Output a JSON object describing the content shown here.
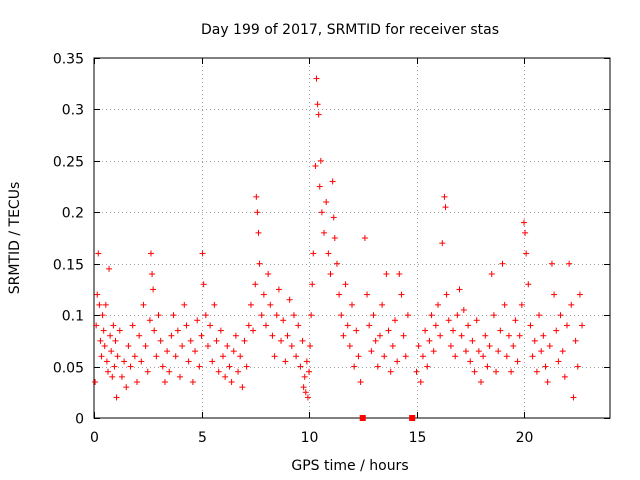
{
  "chart_data": {
    "type": "scatter",
    "title": "Day 199 of 2017, SRMTID for receiver stas",
    "xlabel": "GPS time / hours",
    "ylabel": "SRMTID / TECUs",
    "xlim": [
      0,
      24
    ],
    "ylim": [
      0,
      0.35
    ],
    "xticks": [
      0,
      5,
      10,
      15,
      20
    ],
    "xtick_labels": [
      "0",
      "5",
      "10",
      "15",
      "20"
    ],
    "yticks": [
      0,
      0.05,
      0.1,
      0.15,
      0.2,
      0.25,
      0.3,
      0.35
    ],
    "ytick_labels": [
      "0",
      "0.05",
      "0.1",
      "0.15",
      "0.2",
      "0.25",
      "0.3",
      "0.35"
    ],
    "grid": true,
    "marker": "+",
    "color": "#ff0000",
    "series": [
      {
        "name": "SRMTID",
        "points": [
          [
            0.05,
            0.035
          ],
          [
            0.1,
            0.09
          ],
          [
            0.15,
            0.12
          ],
          [
            0.2,
            0.16
          ],
          [
            0.25,
            0.11
          ],
          [
            0.3,
            0.075
          ],
          [
            0.35,
            0.06
          ],
          [
            0.4,
            0.1
          ],
          [
            0.45,
            0.085
          ],
          [
            0.5,
            0.07
          ],
          [
            0.55,
            0.11
          ],
          [
            0.6,
            0.055
          ],
          [
            0.65,
            0.045
          ],
          [
            0.7,
            0.145
          ],
          [
            0.75,
            0.08
          ],
          [
            0.8,
            0.065
          ],
          [
            0.85,
            0.04
          ],
          [
            0.9,
            0.09
          ],
          [
            0.95,
            0.05
          ],
          [
            1.0,
            0.075
          ],
          [
            1.05,
            0.02
          ],
          [
            1.1,
            0.06
          ],
          [
            1.2,
            0.085
          ],
          [
            1.3,
            0.04
          ],
          [
            1.4,
            0.055
          ],
          [
            1.5,
            0.03
          ],
          [
            1.6,
            0.07
          ],
          [
            1.7,
            0.05
          ],
          [
            1.8,
            0.09
          ],
          [
            1.9,
            0.06
          ],
          [
            2.0,
            0.035
          ],
          [
            2.1,
            0.08
          ],
          [
            2.2,
            0.055
          ],
          [
            2.3,
            0.11
          ],
          [
            2.4,
            0.07
          ],
          [
            2.5,
            0.045
          ],
          [
            2.6,
            0.095
          ],
          [
            2.65,
            0.16
          ],
          [
            2.7,
            0.14
          ],
          [
            2.75,
            0.125
          ],
          [
            2.8,
            0.085
          ],
          [
            2.9,
            0.06
          ],
          [
            3.0,
            0.1
          ],
          [
            3.1,
            0.075
          ],
          [
            3.2,
            0.05
          ],
          [
            3.3,
            0.035
          ],
          [
            3.4,
            0.065
          ],
          [
            3.5,
            0.045
          ],
          [
            3.6,
            0.08
          ],
          [
            3.7,
            0.1
          ],
          [
            3.8,
            0.06
          ],
          [
            3.9,
            0.085
          ],
          [
            4.0,
            0.04
          ],
          [
            4.1,
            0.07
          ],
          [
            4.2,
            0.11
          ],
          [
            4.3,
            0.09
          ],
          [
            4.4,
            0.055
          ],
          [
            4.5,
            0.075
          ],
          [
            4.6,
            0.035
          ],
          [
            4.7,
            0.065
          ],
          [
            4.8,
            0.095
          ],
          [
            4.9,
            0.05
          ],
          [
            5.0,
            0.08
          ],
          [
            5.05,
            0.16
          ],
          [
            5.1,
            0.13
          ],
          [
            5.2,
            0.1
          ],
          [
            5.3,
            0.07
          ],
          [
            5.4,
            0.09
          ],
          [
            5.5,
            0.055
          ],
          [
            5.6,
            0.11
          ],
          [
            5.7,
            0.075
          ],
          [
            5.8,
            0.045
          ],
          [
            5.9,
            0.085
          ],
          [
            6.0,
            0.06
          ],
          [
            6.1,
            0.04
          ],
          [
            6.2,
            0.07
          ],
          [
            6.3,
            0.05
          ],
          [
            6.4,
            0.035
          ],
          [
            6.5,
            0.065
          ],
          [
            6.6,
            0.08
          ],
          [
            6.7,
            0.045
          ],
          [
            6.8,
            0.06
          ],
          [
            6.9,
            0.03
          ],
          [
            7.0,
            0.075
          ],
          [
            7.1,
            0.05
          ],
          [
            7.2,
            0.09
          ],
          [
            7.3,
            0.11
          ],
          [
            7.4,
            0.085
          ],
          [
            7.5,
            0.13
          ],
          [
            7.55,
            0.215
          ],
          [
            7.6,
            0.2
          ],
          [
            7.65,
            0.18
          ],
          [
            7.7,
            0.15
          ],
          [
            7.8,
            0.1
          ],
          [
            7.9,
            0.12
          ],
          [
            8.0,
            0.09
          ],
          [
            8.1,
            0.14
          ],
          [
            8.2,
            0.11
          ],
          [
            8.3,
            0.08
          ],
          [
            8.4,
            0.06
          ],
          [
            8.5,
            0.1
          ],
          [
            8.6,
            0.125
          ],
          [
            8.7,
            0.075
          ],
          [
            8.8,
            0.095
          ],
          [
            8.9,
            0.055
          ],
          [
            9.0,
            0.08
          ],
          [
            9.1,
            0.115
          ],
          [
            9.2,
            0.07
          ],
          [
            9.3,
            0.1
          ],
          [
            9.4,
            0.06
          ],
          [
            9.5,
            0.09
          ],
          [
            9.6,
            0.05
          ],
          [
            9.7,
            0.075
          ],
          [
            9.75,
            0.03
          ],
          [
            9.8,
            0.04
          ],
          [
            9.85,
            0.025
          ],
          [
            9.9,
            0.055
          ],
          [
            9.95,
            0.02
          ],
          [
            10.0,
            0.045
          ],
          [
            10.05,
            0.07
          ],
          [
            10.1,
            0.1
          ],
          [
            10.15,
            0.13
          ],
          [
            10.2,
            0.16
          ],
          [
            10.3,
            0.245
          ],
          [
            10.35,
            0.33
          ],
          [
            10.4,
            0.305
          ],
          [
            10.45,
            0.295
          ],
          [
            10.5,
            0.225
          ],
          [
            10.55,
            0.25
          ],
          [
            10.6,
            0.2
          ],
          [
            10.7,
            0.18
          ],
          [
            10.8,
            0.21
          ],
          [
            10.9,
            0.16
          ],
          [
            11.0,
            0.14
          ],
          [
            11.1,
            0.23
          ],
          [
            11.15,
            0.195
          ],
          [
            11.2,
            0.175
          ],
          [
            11.3,
            0.15
          ],
          [
            11.4,
            0.12
          ],
          [
            11.5,
            0.1
          ],
          [
            11.6,
            0.08
          ],
          [
            11.7,
            0.13
          ],
          [
            11.8,
            0.09
          ],
          [
            11.9,
            0.07
          ],
          [
            12.0,
            0.11
          ],
          [
            12.1,
            0.05
          ],
          [
            12.2,
            0.085
          ],
          [
            12.3,
            0.06
          ],
          [
            12.4,
            0.035
          ],
          [
            12.6,
            0.175
          ],
          [
            12.7,
            0.12
          ],
          [
            12.8,
            0.09
          ],
          [
            12.9,
            0.065
          ],
          [
            13.0,
            0.1
          ],
          [
            13.1,
            0.075
          ],
          [
            13.2,
            0.05
          ],
          [
            13.3,
            0.08
          ],
          [
            13.4,
            0.11
          ],
          [
            13.5,
            0.06
          ],
          [
            13.6,
            0.14
          ],
          [
            13.7,
            0.085
          ],
          [
            13.8,
            0.045
          ],
          [
            13.9,
            0.07
          ],
          [
            14.0,
            0.095
          ],
          [
            14.1,
            0.055
          ],
          [
            14.2,
            0.14
          ],
          [
            14.3,
            0.12
          ],
          [
            14.4,
            0.08
          ],
          [
            14.5,
            0.06
          ],
          [
            14.6,
            0.1
          ],
          [
            15.0,
            0.045
          ],
          [
            15.1,
            0.07
          ],
          [
            15.2,
            0.035
          ],
          [
            15.3,
            0.06
          ],
          [
            15.4,
            0.085
          ],
          [
            15.5,
            0.05
          ],
          [
            15.6,
            0.075
          ],
          [
            15.7,
            0.1
          ],
          [
            15.8,
            0.065
          ],
          [
            15.9,
            0.09
          ],
          [
            16.0,
            0.11
          ],
          [
            16.1,
            0.08
          ],
          [
            16.2,
            0.17
          ],
          [
            16.3,
            0.215
          ],
          [
            16.35,
            0.205
          ],
          [
            16.4,
            0.12
          ],
          [
            16.5,
            0.095
          ],
          [
            16.6,
            0.07
          ],
          [
            16.7,
            0.085
          ],
          [
            16.8,
            0.06
          ],
          [
            16.9,
            0.1
          ],
          [
            17.0,
            0.125
          ],
          [
            17.1,
            0.08
          ],
          [
            17.2,
            0.105
          ],
          [
            17.3,
            0.065
          ],
          [
            17.4,
            0.09
          ],
          [
            17.5,
            0.055
          ],
          [
            17.6,
            0.075
          ],
          [
            17.7,
            0.045
          ],
          [
            17.8,
            0.095
          ],
          [
            17.9,
            0.065
          ],
          [
            18.0,
            0.035
          ],
          [
            18.1,
            0.06
          ],
          [
            18.2,
            0.08
          ],
          [
            18.3,
            0.05
          ],
          [
            18.4,
            0.07
          ],
          [
            18.5,
            0.14
          ],
          [
            18.6,
            0.1
          ],
          [
            18.7,
            0.045
          ],
          [
            18.8,
            0.065
          ],
          [
            18.9,
            0.085
          ],
          [
            19.0,
            0.15
          ],
          [
            19.1,
            0.11
          ],
          [
            19.2,
            0.06
          ],
          [
            19.3,
            0.08
          ],
          [
            19.4,
            0.045
          ],
          [
            19.5,
            0.07
          ],
          [
            19.6,
            0.095
          ],
          [
            19.7,
            0.055
          ],
          [
            19.8,
            0.08
          ],
          [
            19.9,
            0.11
          ],
          [
            20.0,
            0.19
          ],
          [
            20.05,
            0.18
          ],
          [
            20.1,
            0.16
          ],
          [
            20.2,
            0.13
          ],
          [
            20.3,
            0.09
          ],
          [
            20.4,
            0.06
          ],
          [
            20.5,
            0.075
          ],
          [
            20.6,
            0.045
          ],
          [
            20.7,
            0.1
          ],
          [
            20.8,
            0.065
          ],
          [
            20.9,
            0.08
          ],
          [
            21.0,
            0.05
          ],
          [
            21.1,
            0.035
          ],
          [
            21.2,
            0.07
          ],
          [
            21.3,
            0.15
          ],
          [
            21.4,
            0.12
          ],
          [
            21.5,
            0.085
          ],
          [
            21.6,
            0.055
          ],
          [
            21.7,
            0.1
          ],
          [
            21.8,
            0.065
          ],
          [
            21.9,
            0.04
          ],
          [
            22.0,
            0.09
          ],
          [
            22.1,
            0.15
          ],
          [
            22.2,
            0.11
          ],
          [
            22.3,
            0.02
          ],
          [
            22.4,
            0.075
          ],
          [
            22.5,
            0.05
          ],
          [
            22.6,
            0.12
          ],
          [
            22.7,
            0.09
          ]
        ]
      }
    ],
    "gap_markers": [
      {
        "x": 12.5,
        "y": 0
      },
      {
        "x": 14.8,
        "y": 0
      }
    ]
  }
}
